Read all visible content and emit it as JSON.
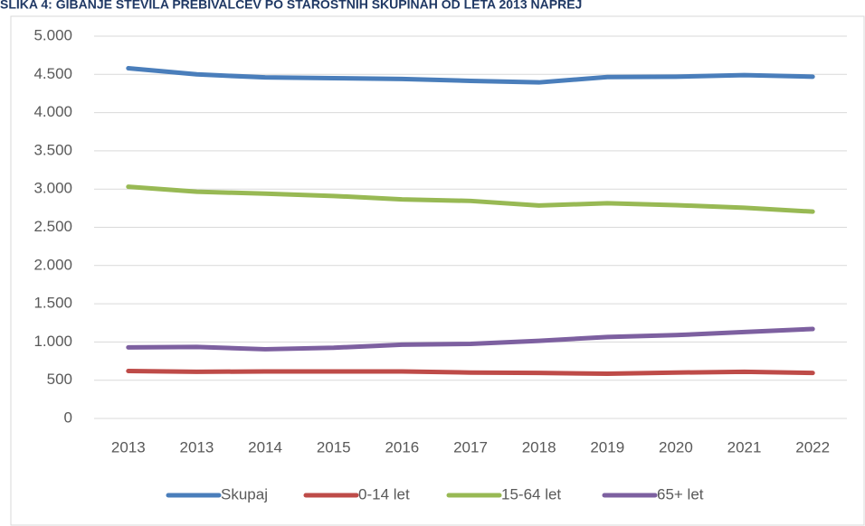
{
  "chart_data": {
    "type": "line",
    "title": "SLIKA 4: GIBANJE ŠTEVILA PREBIVALCEV PO STAROSTNIH SKUPINAH OD LETA 2013 NAPREJ",
    "categories": [
      "2013",
      "2013",
      "2014",
      "2015",
      "2016",
      "2017",
      "2018",
      "2019",
      "2020",
      "2021",
      "2022"
    ],
    "series": [
      {
        "name": "Skupaj",
        "color": "#4a7ebb",
        "values": [
          4580,
          4500,
          4460,
          4450,
          4440,
          4415,
          4395,
          4465,
          4470,
          4490,
          4470
        ]
      },
      {
        "name": "0-14 let",
        "color": "#be4b48",
        "values": [
          620,
          610,
          615,
          615,
          615,
          600,
          595,
          585,
          600,
          610,
          595
        ]
      },
      {
        "name": "15-64 let",
        "color": "#98b954",
        "values": [
          3030,
          2965,
          2940,
          2910,
          2865,
          2845,
          2785,
          2815,
          2790,
          2755,
          2705
        ]
      },
      {
        "name": "65+ let",
        "color": "#7d60a0",
        "values": [
          930,
          935,
          905,
          925,
          965,
          975,
          1015,
          1065,
          1090,
          1130,
          1170
        ]
      }
    ],
    "ylim": [
      0,
      5000
    ],
    "yticks": [
      0,
      500,
      {
        "value": 1000,
        "label": "1.000"
      },
      {
        "value": 1500,
        "label": "1.500"
      },
      {
        "value": 2000,
        "label": "2.000"
      },
      {
        "value": 2500,
        "label": "2.500"
      },
      {
        "value": 3000,
        "label": "3.000"
      },
      {
        "value": 3500,
        "label": "3.500"
      },
      {
        "value": 4000,
        "label": "4.000"
      },
      {
        "value": 4500,
        "label": "4.500"
      },
      {
        "value": 5000,
        "label": "5.000"
      }
    ],
    "grid": true,
    "legend": "bottom"
  }
}
